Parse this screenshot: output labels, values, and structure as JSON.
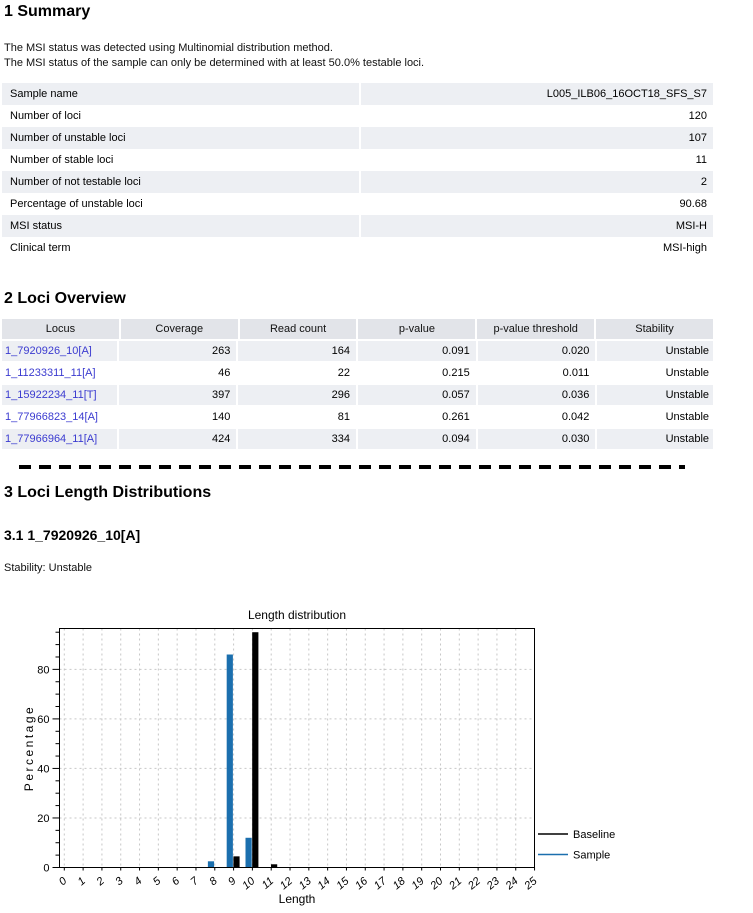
{
  "summary": {
    "heading": "1 Summary",
    "intro": [
      "The MSI status was detected using Multinomial distribution method.",
      "The MSI status of the sample can only be determined with at least 50.0% testable loci."
    ],
    "rows": [
      {
        "label": "Sample name",
        "value": "L005_ILB06_16OCT18_SFS_S7"
      },
      {
        "label": "Number of loci",
        "value": "120"
      },
      {
        "label": "Number of unstable loci",
        "value": "107"
      },
      {
        "label": "Number of stable loci",
        "value": "11"
      },
      {
        "label": "Number of not testable loci",
        "value": "2"
      },
      {
        "label": "Percentage of unstable loci",
        "value": "90.68"
      },
      {
        "label": "MSI status",
        "value": "MSI-H"
      },
      {
        "label": "Clinical term",
        "value": "MSI-high"
      }
    ]
  },
  "loci": {
    "heading": "2 Loci Overview",
    "columns": [
      "Locus",
      "Coverage",
      "Read count",
      "p-value",
      "p-value threshold",
      "Stability"
    ],
    "rows": [
      [
        "1_7920926_10[A]",
        "263",
        "164",
        "0.091",
        "0.020",
        "Unstable"
      ],
      [
        "1_11233311_11[A]",
        "46",
        "22",
        "0.215",
        "0.011",
        "Unstable"
      ],
      [
        "1_15922234_11[T]",
        "397",
        "296",
        "0.057",
        "0.036",
        "Unstable"
      ],
      [
        "1_77966823_14[A]",
        "140",
        "81",
        "0.261",
        "0.042",
        "Unstable"
      ],
      [
        "1_77966964_11[A]",
        "424",
        "334",
        "0.094",
        "0.030",
        "Unstable"
      ]
    ]
  },
  "dist": {
    "heading": "3 Loci Length Distributions",
    "subheading": "3.1 1_7920926_10[A]",
    "stability": "Stability: Unstable"
  },
  "chart_data": {
    "type": "bar",
    "title": "Length distribution",
    "xlabel": "Length",
    "ylabel": "Percentage",
    "x": [
      0,
      1,
      2,
      3,
      4,
      5,
      6,
      7,
      8,
      9,
      10,
      11,
      12,
      13,
      14,
      15,
      16,
      17,
      18,
      19,
      20,
      21,
      22,
      23,
      24,
      25
    ],
    "series": [
      {
        "name": "Baseline",
        "color": "#000000",
        "values": [
          0,
          0,
          0,
          0,
          0,
          0,
          0,
          0,
          0,
          4.5,
          95,
          1.3,
          0,
          0,
          0,
          0,
          0,
          0,
          0,
          0,
          0,
          0,
          0,
          0,
          0,
          0
        ]
      },
      {
        "name": "Sample",
        "color": "#1b6fae",
        "values": [
          0,
          0,
          0,
          0,
          0,
          0,
          0,
          0,
          2.5,
          86,
          12,
          0,
          0,
          0,
          0,
          0,
          0,
          0,
          0,
          0,
          0,
          0,
          0,
          0,
          0,
          0
        ]
      }
    ],
    "ylim": [
      0,
      96.5
    ],
    "yticks": [
      0,
      20,
      40,
      60,
      80
    ],
    "y_minor_step": 5,
    "grid": true,
    "legend_position": "right"
  },
  "colors": {
    "link": "#3b3bd0",
    "row_alt": "#edeff3",
    "table_header": "#e2e4e9",
    "baseline": "#000000",
    "sample": "#1b6fae",
    "gridline": "#c7c7c7"
  }
}
